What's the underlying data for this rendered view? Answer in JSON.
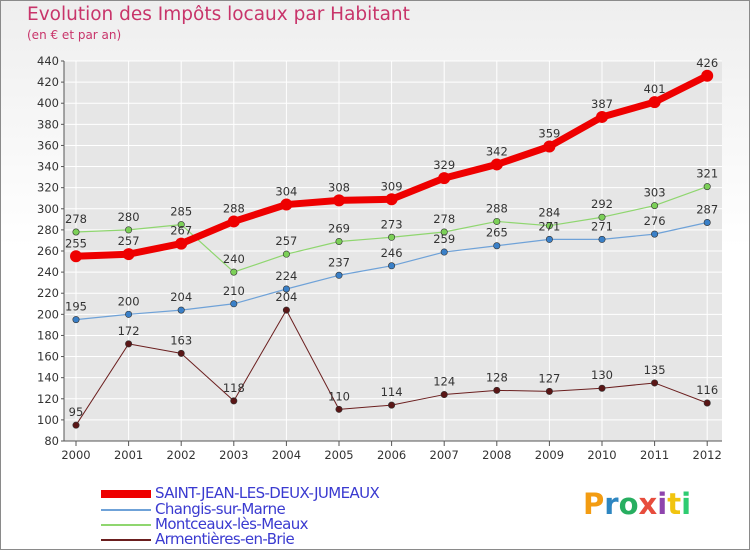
{
  "title": "Evolution des Impôts locaux par Habitant",
  "subtitle": "(en € et par an)",
  "logo": {
    "text": "Proxiti",
    "letter_colors": [
      "#f39c12",
      "#2e86c1",
      "#27ae60",
      "#e74c3c",
      "#8e44ad",
      "#f1c40f",
      "#2ecc71"
    ]
  },
  "chart_data": {
    "type": "line",
    "title": "Evolution des Impôts locaux par Habitant",
    "subtitle": "(en € et par an)",
    "xlabel": "",
    "ylabel": "",
    "x": [
      "2000",
      "2001",
      "2002",
      "2003",
      "2004",
      "2005",
      "2006",
      "2007",
      "2008",
      "2009",
      "2010",
      "2011",
      "2012"
    ],
    "ylim": [
      80,
      440
    ],
    "yticks": [
      80,
      100,
      120,
      140,
      160,
      180,
      200,
      220,
      240,
      260,
      280,
      300,
      320,
      340,
      360,
      380,
      400,
      420,
      440
    ],
    "grid": true,
    "legend_position": "bottom-left",
    "series": [
      {
        "name": "Armentières-en-Brie",
        "color": "#6b1f1f",
        "marker": "#5a1616",
        "width": 1,
        "values": [
          95,
          172,
          163,
          118,
          204,
          110,
          114,
          124,
          128,
          127,
          130,
          135,
          116
        ]
      },
      {
        "name": "Changis-sur-Marne",
        "color": "#6fa2d8",
        "marker": "#3a80c8",
        "width": 1.2,
        "values": [
          195,
          200,
          204,
          210,
          224,
          237,
          246,
          259,
          265,
          271,
          271,
          276,
          287
        ]
      },
      {
        "name": "Montceaux-lès-Meaux",
        "color": "#8fd66f",
        "marker": "#7cd058",
        "width": 1.2,
        "values": [
          278,
          280,
          285,
          240,
          257,
          269,
          273,
          278,
          288,
          284,
          292,
          303,
          321
        ]
      },
      {
        "name": "SAINT-JEAN-LES-DEUX-JUMEAUX",
        "color": "#ee0000",
        "marker": "#ee0000",
        "width": 7,
        "values": [
          255,
          257,
          267,
          288,
          304,
          308,
          309,
          329,
          342,
          359,
          387,
          401,
          426
        ]
      }
    ],
    "legend": [
      "SAINT-JEAN-LES-DEUX-JUMEAUX",
      "Changis-sur-Marne",
      "Montceaux-lès-Meaux",
      "Armentières-en-Brie"
    ]
  }
}
